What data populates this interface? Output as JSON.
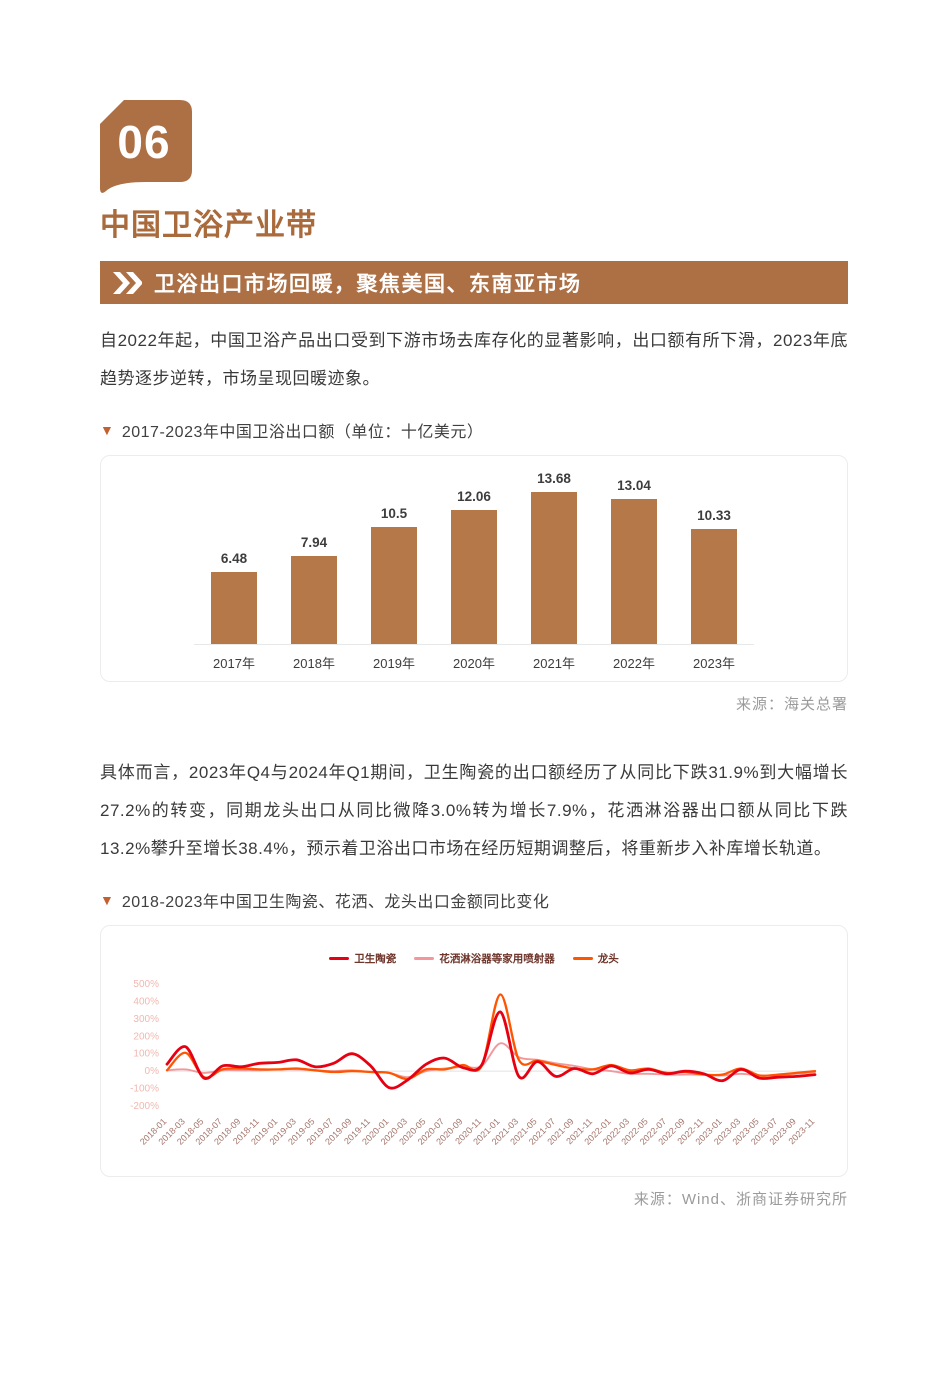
{
  "page": {
    "section_number": "06",
    "section_title": "中国卫浴产业带",
    "banner_title": "卫浴出口市场回暖，聚焦美国、东南亚市场",
    "paragraph_1": "自2022年起，中国卫浴产品出口受到下游市场去库存化的显著影响，出口额有所下滑，2023年底趋势逐步逆转，市场呈现回暖迹象。",
    "chart1_caption": "2017-2023年中国卫浴出口额（单位：十亿美元）",
    "chart1_source": "来源：海关总署",
    "paragraph_2": "具体而言，2023年Q4与2024年Q1期间，卫生陶瓷的出口额经历了从同比下跌31.9%到大幅增长27.2%的转变，同期龙头出口从同比微降3.0%转为增长7.9%，花洒淋浴器出口额从同比下跌13.2%攀升至增长38.4%，预示着卫浴出口市场在经历短期调整后，将重新步入补库增长轨道。",
    "chart2_caption": "2018-2023年中国卫生陶瓷、花洒、龙头出口金额同比变化",
    "chart2_source": "来源：Wind、浙商证券研究所"
  },
  "colors": {
    "brand_brown": "#ad6f44",
    "title_brown": "#a96a3c",
    "bar_fill": "#b57849",
    "caption_triangle": "#c2602f",
    "baseline_gray": "#e8e8e8",
    "source_gray": "#9b9b9b",
    "y_tick_color": "#f0b8b0",
    "x_tick_color": "#a3746a",
    "legend_text_color": "#6e352b"
  },
  "icons": {
    "badge_shape": "speech-bubble-badge",
    "banner_chevrons": "double-chevron-right",
    "caption_marker": "down-triangle"
  },
  "chart_data": [
    {
      "type": "bar",
      "title": "2017-2023年中国卫浴出口额（单位：十亿美元）",
      "categories": [
        "2017年",
        "2018年",
        "2019年",
        "2020年",
        "2021年",
        "2022年",
        "2023年"
      ],
      "values": [
        6.48,
        7.94,
        10.5,
        12.06,
        13.68,
        13.04,
        10.33
      ],
      "xlabel": "",
      "ylabel": "",
      "ylim": [
        0,
        15
      ],
      "grid": false,
      "bar_color": "#b57849",
      "source": "来源：海关总署"
    },
    {
      "type": "line",
      "title": "2018-2023年中国卫生陶瓷、花洒、龙头出口金额同比变化",
      "x": [
        "2018-01",
        "2018-03",
        "2018-05",
        "2018-07",
        "2018-09",
        "2018-11",
        "2019-01",
        "2019-03",
        "2019-05",
        "2019-07",
        "2019-09",
        "2019-11",
        "2020-01",
        "2020-03",
        "2020-05",
        "2020-07",
        "2020-09",
        "2020-11",
        "2021-01",
        "2021-03",
        "2021-05",
        "2021-07",
        "2021-09",
        "2021-11",
        "2022-01",
        "2022-03",
        "2022-05",
        "2022-07",
        "2022-09",
        "2022-11",
        "2023-01",
        "2023-03",
        "2023-05",
        "2023-07",
        "2023-09",
        "2023-11"
      ],
      "y_ticks": [
        "500%",
        "400%",
        "300%",
        "200%",
        "100%",
        "0%",
        "-100%",
        "-200%"
      ],
      "ylim": [
        -200,
        500
      ],
      "unit": "%",
      "grid": false,
      "legend_position": "top",
      "series": [
        {
          "name": "卫生陶瓷",
          "color": "#e60012",
          "values": [
            40,
            140,
            -40,
            30,
            25,
            45,
            50,
            65,
            25,
            45,
            100,
            30,
            -95,
            -50,
            40,
            75,
            20,
            35,
            340,
            -30,
            55,
            -30,
            15,
            -15,
            30,
            -10,
            10,
            -15,
            0,
            -15,
            -55,
            10,
            -40,
            -35,
            -30,
            -20
          ]
        },
        {
          "name": "花洒淋浴器等家用喷射器",
          "color": "#f2989b",
          "values": [
            5,
            10,
            -10,
            5,
            5,
            5,
            10,
            10,
            5,
            0,
            5,
            -5,
            -10,
            -35,
            0,
            15,
            25,
            30,
            160,
            80,
            65,
            45,
            30,
            10,
            0,
            -15,
            -15,
            -20,
            -20,
            -20,
            -25,
            -15,
            -25,
            -25,
            -15,
            -5
          ]
        },
        {
          "name": "龙头",
          "color": "#ff5500",
          "values": [
            5,
            105,
            -35,
            10,
            15,
            10,
            10,
            15,
            5,
            -5,
            0,
            -5,
            -10,
            -45,
            10,
            10,
            35,
            30,
            440,
            65,
            60,
            35,
            15,
            10,
            35,
            5,
            15,
            -10,
            -5,
            -20,
            -20,
            15,
            -25,
            -20,
            -10,
            0
          ]
        }
      ],
      "source": "来源：Wind、浙商证券研究所"
    }
  ]
}
